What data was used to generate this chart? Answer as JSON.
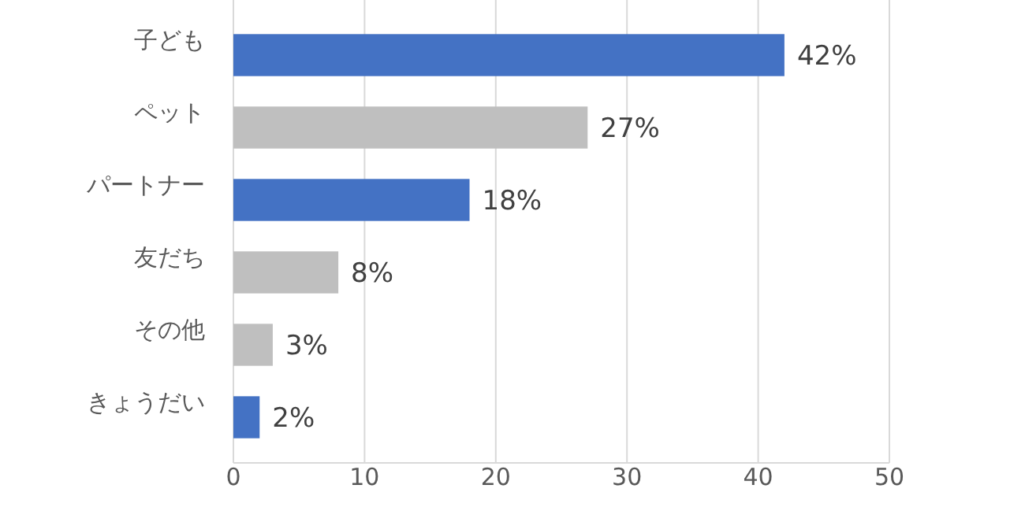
{
  "chart_data": {
    "type": "bar",
    "orientation": "horizontal",
    "categories": [
      "子ども",
      "ペット",
      "パートナー",
      "友だち",
      "その他",
      "きょうだい"
    ],
    "values": [
      42,
      27,
      18,
      8,
      3,
      2
    ],
    "colors": [
      "#4472c4",
      "#bfbfbf",
      "#4472c4",
      "#bfbfbf",
      "#bfbfbf",
      "#4472c4"
    ],
    "value_labels": [
      "42%",
      "27%",
      "18%",
      "8%",
      "3%",
      "2%"
    ],
    "xlim": [
      0,
      50
    ],
    "xticks": [
      0,
      10,
      20,
      30,
      40,
      50
    ],
    "grid": "x"
  }
}
